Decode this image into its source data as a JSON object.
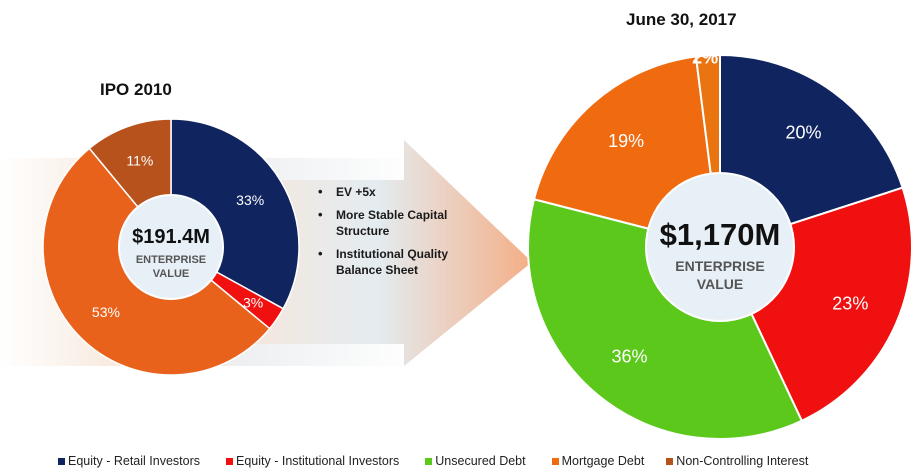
{
  "chart_data": [
    {
      "type": "pie",
      "title": "IPO 2010",
      "center_value": "$191.4M",
      "center_label_line1": "ENTERPRISE",
      "center_label_line2": "VALUE",
      "slices": [
        {
          "label": "Equity - Retail Investors",
          "value": 33,
          "display": "33%",
          "color": "#10245f"
        },
        {
          "label": "Equity - Institutional Investors",
          "value": 3,
          "display": "3%",
          "color": "#f01010"
        },
        {
          "label": "Mortgage Debt",
          "value": 53,
          "display": "53%",
          "color": "#e8621c"
        },
        {
          "label": "Non-Controlling Interest",
          "value": 11,
          "display": "11%",
          "color": "#b8521c"
        }
      ]
    },
    {
      "type": "pie",
      "title": "June 30, 2017",
      "center_value": "$1,170M",
      "center_label_line1": "ENTERPRISE",
      "center_label_line2": "VALUE",
      "slices": [
        {
          "label": "Equity - Retail Investors",
          "value": 20,
          "display": "20%",
          "color": "#10245f"
        },
        {
          "label": "Equity - Institutional Investors",
          "value": 23,
          "display": "23%",
          "color": "#f01010"
        },
        {
          "label": "Unsecured Debt",
          "value": 36,
          "display": "36%",
          "color": "#5cc81c"
        },
        {
          "label": "Mortgage Debt",
          "value": 19,
          "display": "19%",
          "color": "#f06a10"
        },
        {
          "label": "Non-Controlling Interest",
          "value": 2,
          "display": "2%",
          "color": "#ea7410"
        }
      ]
    }
  ],
  "bullets": [
    "EV +5x",
    "More Stable Capital Structure",
    "Institutional Quality Balance Sheet"
  ],
  "legend": [
    {
      "label": "Equity - Retail Investors",
      "color": "#10245f"
    },
    {
      "label": "Equity - Institutional Investors",
      "color": "#f01010"
    },
    {
      "label": "Unsecured Debt",
      "color": "#5cc81c"
    },
    {
      "label": "Mortgage Debt",
      "color": "#f06a10"
    },
    {
      "label": "Non-Controlling Interest",
      "color": "#b8521c"
    }
  ]
}
